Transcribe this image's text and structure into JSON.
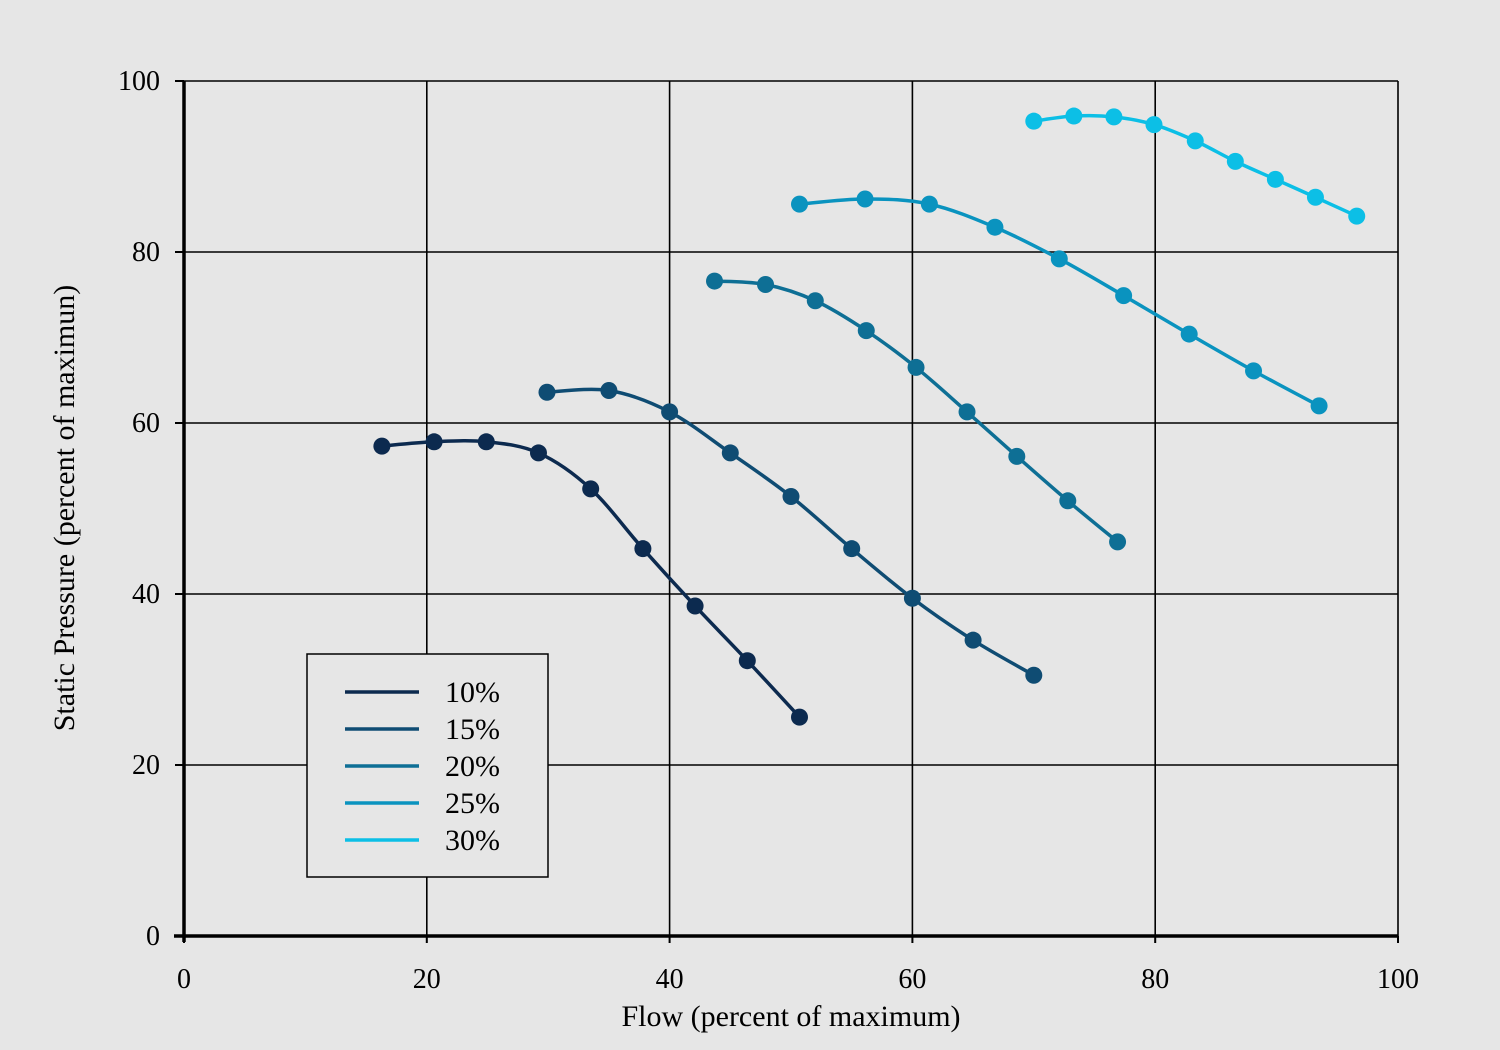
{
  "chart_data": {
    "type": "line",
    "xlabel": "Flow (percent of maximum)",
    "ylabel": "Static Pressure (percent of maximun)",
    "xlim": [
      0,
      100
    ],
    "ylim": [
      0,
      100
    ],
    "x_ticks": [
      "0",
      "20",
      "40",
      "60",
      "80",
      "100"
    ],
    "y_ticks": [
      "0",
      "20",
      "40",
      "60",
      "80",
      "100"
    ],
    "grid": true,
    "legend_position": "lower-left",
    "series": [
      {
        "name": "10%",
        "color": "#0c2a4f",
        "points": [
          [
            16.3,
            57.3
          ],
          [
            20.6,
            57.8
          ],
          [
            24.9,
            57.8
          ],
          [
            29.2,
            56.5
          ],
          [
            33.5,
            52.3
          ],
          [
            37.8,
            45.3
          ],
          [
            42.1,
            38.6
          ],
          [
            46.4,
            32.2
          ],
          [
            50.7,
            25.6
          ]
        ]
      },
      {
        "name": "15%",
        "color": "#0f4c73",
        "points": [
          [
            29.9,
            63.6
          ],
          [
            35.0,
            63.8
          ],
          [
            40.0,
            61.3
          ],
          [
            45.0,
            56.5
          ],
          [
            50.0,
            51.4
          ],
          [
            55.0,
            45.3
          ],
          [
            60.0,
            39.5
          ],
          [
            65.0,
            34.6
          ],
          [
            70.0,
            30.5
          ]
        ]
      },
      {
        "name": "20%",
        "color": "#0e6f95",
        "points": [
          [
            43.7,
            76.6
          ],
          [
            47.9,
            76.2
          ],
          [
            52.0,
            74.3
          ],
          [
            56.2,
            70.8
          ],
          [
            60.3,
            66.5
          ],
          [
            64.5,
            61.3
          ],
          [
            68.6,
            56.1
          ],
          [
            72.8,
            50.9
          ],
          [
            76.9,
            46.1
          ]
        ]
      },
      {
        "name": "25%",
        "color": "#0a93bf",
        "points": [
          [
            50.7,
            85.6
          ],
          [
            56.1,
            86.2
          ],
          [
            61.4,
            85.6
          ],
          [
            66.8,
            82.9
          ],
          [
            72.1,
            79.2
          ],
          [
            77.4,
            74.9
          ],
          [
            82.8,
            70.4
          ],
          [
            88.1,
            66.1
          ],
          [
            93.5,
            62.0
          ]
        ]
      },
      {
        "name": "30%",
        "color": "#0cbfe6",
        "points": [
          [
            70.0,
            95.3
          ],
          [
            73.3,
            95.9
          ],
          [
            76.6,
            95.8
          ],
          [
            79.9,
            94.9
          ],
          [
            83.3,
            93.0
          ],
          [
            86.6,
            90.6
          ],
          [
            89.9,
            88.5
          ],
          [
            93.2,
            86.4
          ],
          [
            96.6,
            84.2
          ]
        ]
      }
    ]
  }
}
